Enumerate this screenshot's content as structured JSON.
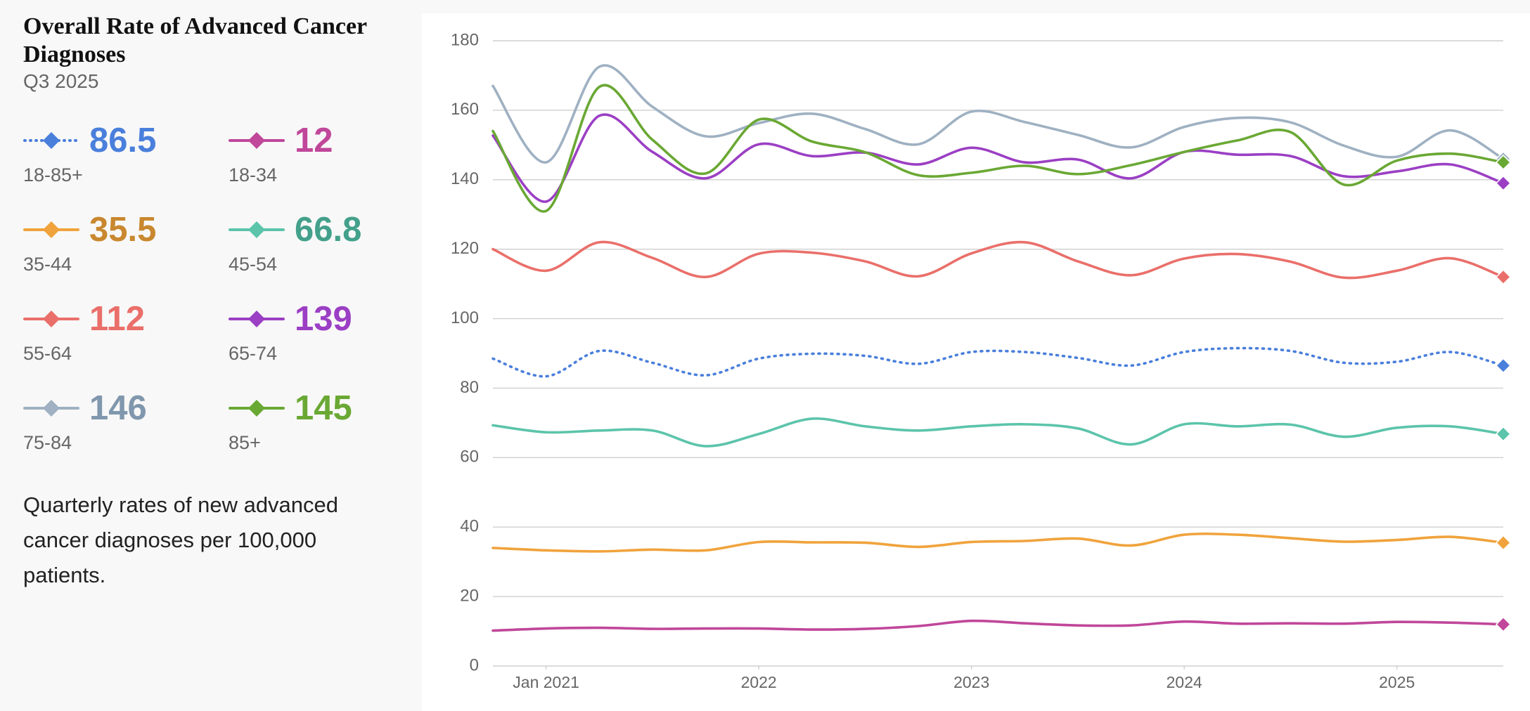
{
  "chart_data": {
    "type": "line",
    "title": "Overall Rate of Advanced Cancer Diagnoses",
    "subtitle": "Q3 2025",
    "description": "Quarterly rates of new advanced cancer diagnoses per 100,000 patients.",
    "x": [
      "2020-10",
      "2021-01",
      "2021-04",
      "2021-07",
      "2021-10",
      "2022-01",
      "2022-04",
      "2022-07",
      "2022-10",
      "2023-01",
      "2023-04",
      "2023-07",
      "2023-10",
      "2024-01",
      "2024-04",
      "2024-07",
      "2024-10",
      "2025-01",
      "2025-04",
      "2025-07"
    ],
    "xlim": [
      "2020-10",
      "2025-07"
    ],
    "xticks": [
      {
        "value": "2021-01",
        "label": "Jan 2021"
      },
      {
        "value": "2022-01",
        "label": "2022"
      },
      {
        "value": "2023-01",
        "label": "2023"
      },
      {
        "value": "2024-01",
        "label": "2024"
      },
      {
        "value": "2025-01",
        "label": "2025"
      }
    ],
    "ylim": [
      0,
      180
    ],
    "yticks": [
      0,
      20,
      40,
      60,
      80,
      100,
      120,
      140,
      160,
      180
    ],
    "grid": true,
    "series": [
      {
        "name": "18-85+",
        "color": "#4a7fdc",
        "label_color": "#4a7fdc",
        "dash": "dotted",
        "values": [
          88.5,
          83.4,
          90.7,
          87.3,
          83.7,
          88.5,
          89.9,
          89.3,
          87,
          90.4,
          90.4,
          88.7,
          86.5,
          90.4,
          91.5,
          90.7,
          87.3,
          87.6,
          90.4,
          86.5
        ]
      },
      {
        "name": "18-34",
        "color": "#c0479a",
        "label_color": "#c0479a",
        "values": [
          10.2,
          10.8,
          11,
          10.7,
          10.8,
          10.8,
          10.5,
          10.7,
          11.5,
          13,
          12.3,
          11.7,
          11.7,
          12.8,
          12.2,
          12.3,
          12.2,
          12.7,
          12.5,
          12
        ]
      },
      {
        "name": "35-44",
        "color": "#f0a33c",
        "label_color": "#c9882f",
        "values": [
          34,
          33.3,
          33,
          33.5,
          33.3,
          35.7,
          35.6,
          35.5,
          34.3,
          35.7,
          36,
          36.7,
          34.7,
          37.8,
          37.8,
          36.8,
          35.8,
          36.3,
          37.2,
          35.5
        ]
      },
      {
        "name": "45-54",
        "color": "#5cc4ab",
        "label_color": "#43a08b",
        "values": [
          69.3,
          67.3,
          67.8,
          67.8,
          63.3,
          66.8,
          71.2,
          69,
          67.8,
          69,
          69.6,
          68.4,
          63.8,
          69.6,
          69,
          69.5,
          66,
          68.6,
          69,
          66.8
        ]
      },
      {
        "name": "55-64",
        "color": "#ea6f6a",
        "label_color": "#ea6f6a",
        "values": [
          120,
          113.8,
          122,
          117.5,
          112,
          118.7,
          119,
          116.5,
          112.2,
          118.8,
          122,
          116.5,
          112.5,
          117.3,
          118.6,
          116.4,
          111.8,
          113.8,
          117.4,
          112
        ]
      },
      {
        "name": "65-74",
        "color": "#9b3fc4",
        "label_color": "#9b3fc4",
        "values": [
          152.7,
          133.7,
          158.4,
          148,
          140.4,
          150.2,
          146.8,
          147.8,
          144.4,
          149.2,
          145,
          145.8,
          140.4,
          148,
          147.2,
          146.8,
          141,
          142.4,
          144.4,
          139
        ]
      },
      {
        "name": "75-84",
        "color": "#9fb1c2",
        "label_color": "#8097ad",
        "values": [
          167,
          145,
          172.5,
          161,
          152.5,
          156.3,
          159,
          154.6,
          150.2,
          159.6,
          156.6,
          152.9,
          149.3,
          155.2,
          157.8,
          156.5,
          149.8,
          146.6,
          154.2,
          146
        ]
      },
      {
        "name": "85+",
        "color": "#6aa834",
        "label_color": "#6aa834",
        "values": [
          154,
          131,
          166.7,
          151.5,
          141.8,
          157.3,
          151,
          147.9,
          141.3,
          142,
          144,
          141.6,
          144.2,
          148,
          151.3,
          153.7,
          138.6,
          145.5,
          147.5,
          145
        ]
      }
    ]
  }
}
